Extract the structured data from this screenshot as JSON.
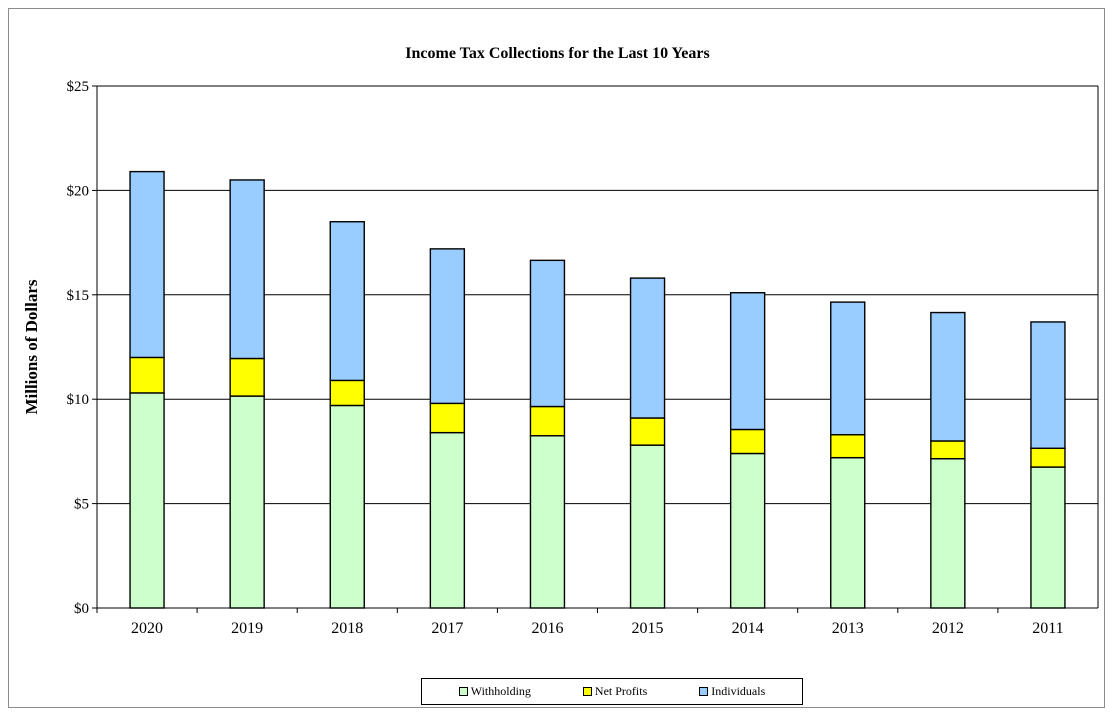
{
  "chart_data": {
    "type": "bar",
    "stacked": true,
    "title": "Income Tax Collections for the Last 10 Years",
    "ylabel": "Millions of Dollars",
    "xlabel": "",
    "ylim": [
      0,
      25
    ],
    "yticks": [
      0,
      5,
      10,
      15,
      20,
      25
    ],
    "ytick_labels": [
      "$0",
      "$5",
      "$10",
      "$15",
      "$20",
      "$25"
    ],
    "grid": true,
    "legend_position": "bottom",
    "categories": [
      "2020",
      "2019",
      "2018",
      "2017",
      "2016",
      "2015",
      "2014",
      "2013",
      "2012",
      "2011"
    ],
    "series": [
      {
        "name": "Withholding",
        "color": "#ccffcc",
        "values": [
          10.3,
          10.15,
          9.7,
          8.4,
          8.25,
          7.8,
          7.4,
          7.2,
          7.15,
          6.75
        ]
      },
      {
        "name": "Net Profits",
        "color": "#ffff00",
        "values": [
          1.7,
          1.8,
          1.2,
          1.4,
          1.4,
          1.3,
          1.15,
          1.1,
          0.85,
          0.9
        ]
      },
      {
        "name": "Individuals",
        "color": "#99ccff",
        "values": [
          8.9,
          8.55,
          7.6,
          7.4,
          7.0,
          6.7,
          6.55,
          6.35,
          6.15,
          6.05
        ]
      }
    ]
  }
}
